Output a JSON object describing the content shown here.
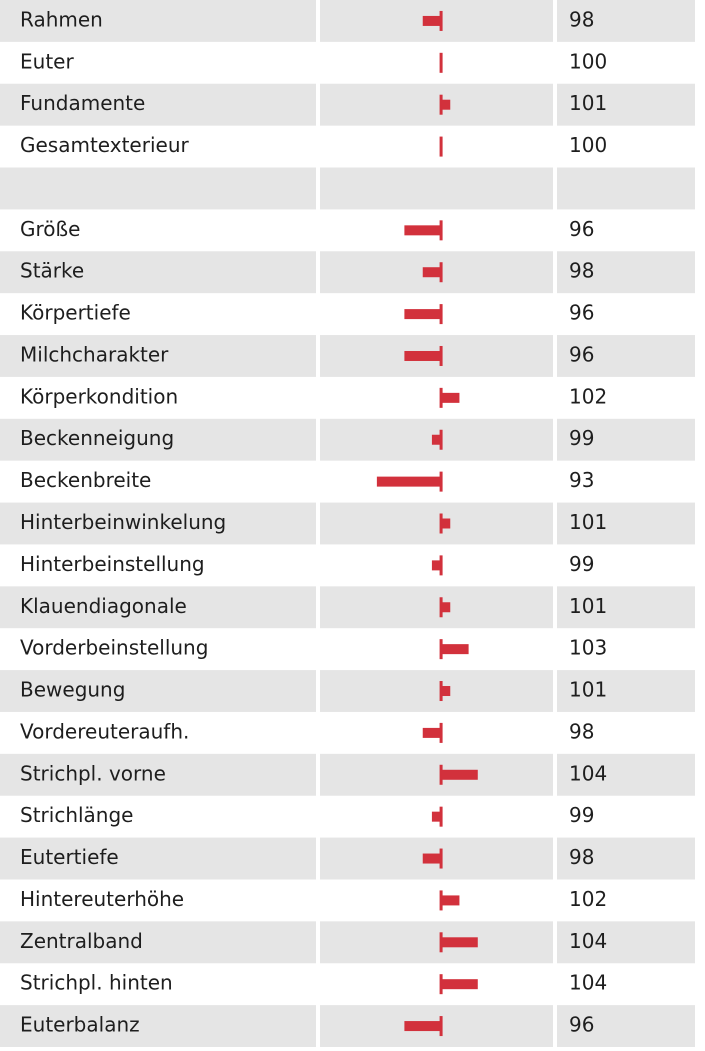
{
  "chart_data": {
    "type": "bar",
    "categories": [
      "Rahmen",
      "Euter",
      "Fundamente",
      "Gesamtexterieur",
      null,
      "Größe",
      "Stärke",
      "Körpertiefe",
      "Milchcharakter",
      "Körperkondition",
      "Beckenneigung",
      "Beckenbreite",
      "Hinterbeinwinkelung",
      "Hinterbeinstellung",
      "Klauendiagonale",
      "Vorderbeinstellung",
      "Bewegung",
      "Vordereuteraufh.",
      "Strichpl. vorne",
      "Strichlänge",
      "Eutertiefe",
      "Hintereuterhöhe",
      "Zentralband",
      "Strichpl. hinten",
      "Euterbalanz"
    ],
    "values": [
      98,
      100,
      101,
      100,
      null,
      96,
      98,
      96,
      96,
      102,
      99,
      93,
      101,
      99,
      101,
      103,
      101,
      98,
      104,
      99,
      98,
      102,
      104,
      104,
      96
    ],
    "baseline": 100,
    "xlim": [
      86.8,
      112.2
    ],
    "color": "#d2313c"
  }
}
